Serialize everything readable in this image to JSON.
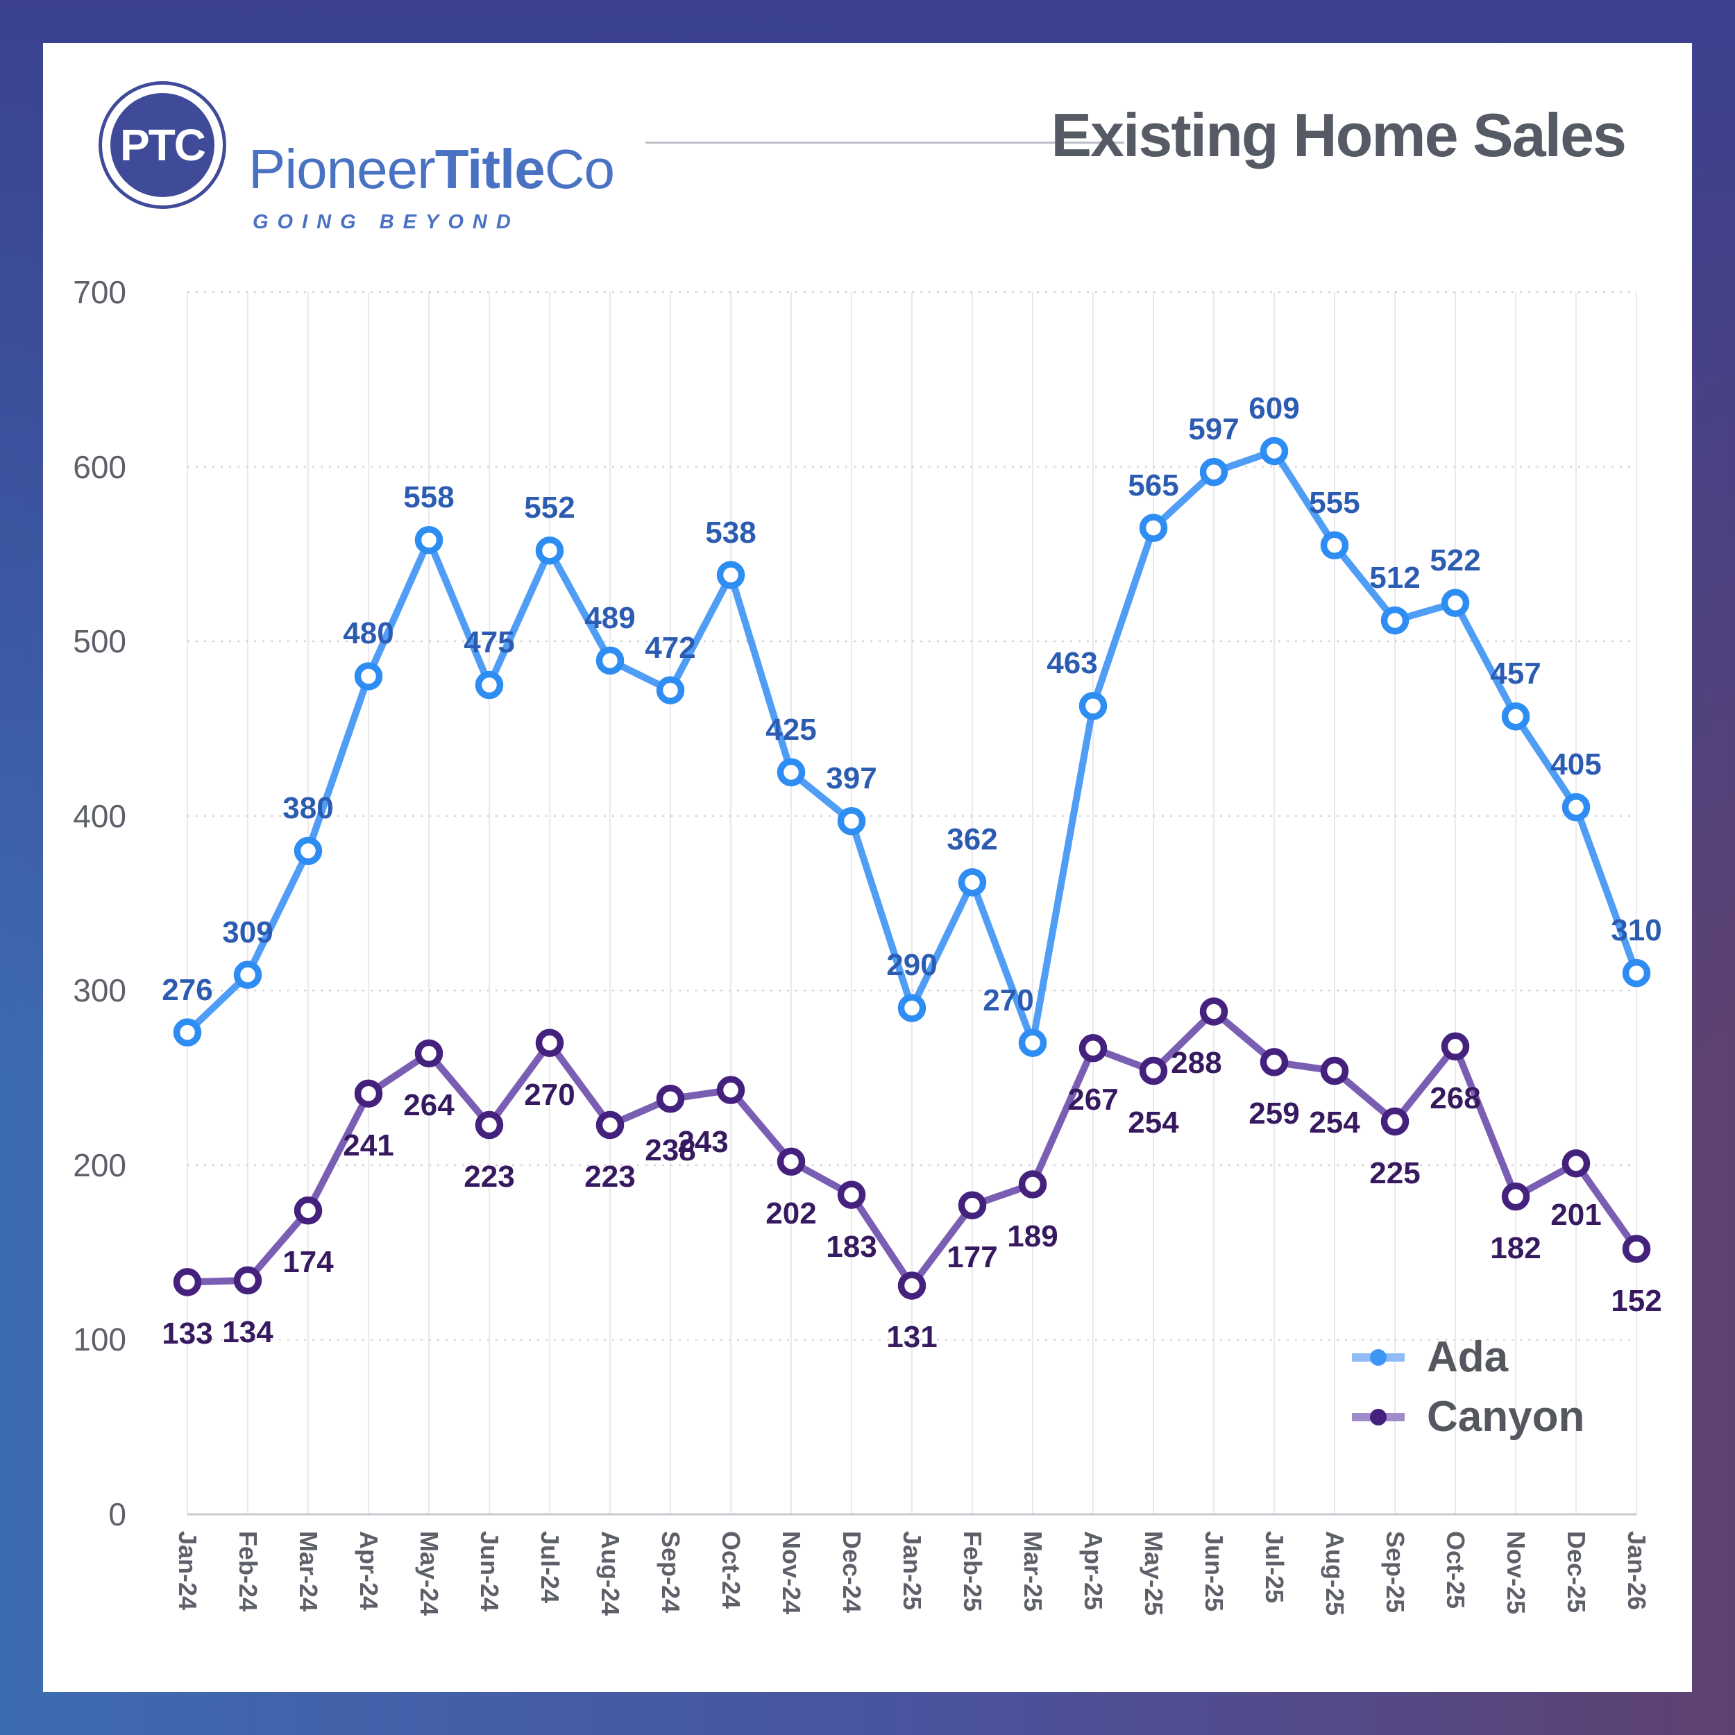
{
  "header": {
    "logo": {
      "monogram": "PTC",
      "brand_pioneer": "Pioneer",
      "brand_title": "Title",
      "brand_co": "Co",
      "tagline": "GOING BEYOND"
    },
    "title": "Existing Home Sales"
  },
  "chart_data": {
    "type": "line",
    "title": "Existing Home Sales",
    "x": [
      "Jan-24",
      "Feb-24",
      "Mar-24",
      "Apr-24",
      "May-24",
      "Jun-24",
      "Jul-24",
      "Aug-24",
      "Sep-24",
      "Oct-24",
      "Nov-24",
      "Dec-24",
      "Jan-25",
      "Feb-25",
      "Mar-25",
      "Apr-25",
      "May-25",
      "Jun-25",
      "Jul-25",
      "Aug-25",
      "Sep-25",
      "Oct-25",
      "Nov-25",
      "Dec-25",
      "Jan-26"
    ],
    "series": [
      {
        "name": "Ada",
        "line_color": "#4F9DF5",
        "marker_color": "#2E8DF2",
        "label_color": "#2B5CB2",
        "legend_stub_color": "#8FBBF7",
        "values": [
          276,
          309,
          380,
          480,
          558,
          475,
          552,
          489,
          472,
          538,
          425,
          397,
          290,
          362,
          270,
          463,
          565,
          597,
          609,
          555,
          512,
          522,
          457,
          405,
          310
        ]
      },
      {
        "name": "Canyon",
        "line_color": "#7A5EB3",
        "marker_color": "#45217E",
        "label_color": "#36195F",
        "legend_stub_color": "#A18CCB",
        "values": [
          133,
          134,
          174,
          241,
          264,
          223,
          270,
          223,
          238,
          243,
          202,
          183,
          131,
          177,
          189,
          267,
          254,
          288,
          259,
          254,
          225,
          268,
          182,
          201,
          152
        ]
      }
    ],
    "ylim": [
      0,
      700
    ],
    "yticks": [
      0,
      100,
      200,
      300,
      400,
      500,
      600,
      700
    ],
    "grid": {
      "vertical": "solid",
      "horizontal": "dotted"
    },
    "legend_position": "bottom-right",
    "data_labels": "all points"
  }
}
